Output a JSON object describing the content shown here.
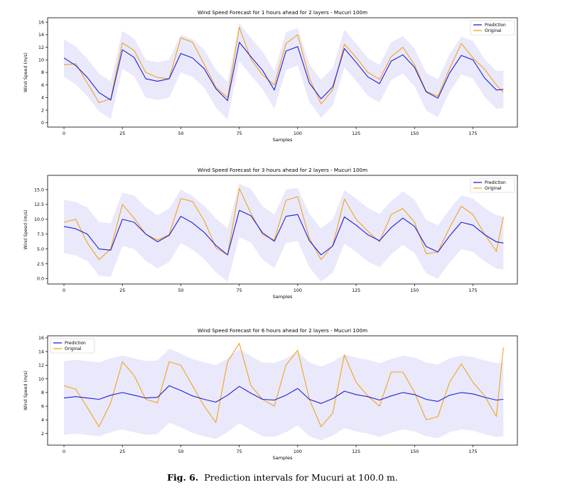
{
  "caption": {
    "label": "Fig. 6.",
    "text": "Prediction intervals for Mucuri at 100.0 m."
  },
  "colors": {
    "prediction": "#1f1fd6",
    "original": "#f5a21b",
    "band": "#e9e9fb",
    "axis": "#000000"
  },
  "chart_data": [
    {
      "type": "line",
      "title": "Wind Speed Forecast for 1 hours ahead for 2 layers - Mucuri 100m",
      "xlabel": "Samples",
      "ylabel": "Wind Speed (m/s)",
      "xlim": [
        -7,
        194
      ],
      "ylim": [
        -0.7,
        16.7
      ],
      "xticks": [
        0,
        25,
        50,
        75,
        100,
        125,
        150,
        175
      ],
      "xtick_labels": [
        "0",
        "25",
        "50",
        "75",
        "100",
        "125",
        "150",
        "175"
      ],
      "yticks": [
        0,
        2,
        4,
        6,
        8,
        10,
        12,
        14,
        16
      ],
      "ytick_labels": [
        "0",
        "2",
        "4",
        "6",
        "8",
        "10",
        "12",
        "14",
        "16"
      ],
      "legend": {
        "position": "top-right",
        "entries": [
          "Prediction",
          "Original"
        ]
      },
      "band_halfwidth": 3.0,
      "series": [
        {
          "name": "Prediction",
          "color": "#1f1fd6",
          "x": [
            0,
            5,
            10,
            15,
            20,
            25,
            30,
            35,
            40,
            45,
            50,
            55,
            60,
            65,
            70,
            75,
            80,
            85,
            90,
            95,
            100,
            105,
            110,
            115,
            120,
            125,
            130,
            135,
            140,
            145,
            150,
            155,
            160,
            165,
            170,
            175,
            180,
            185,
            188
          ],
          "values": [
            10.3,
            9.1,
            7.2,
            4.8,
            3.6,
            11.6,
            10.4,
            7.0,
            6.6,
            7.0,
            11.0,
            10.3,
            8.6,
            5.4,
            3.5,
            12.8,
            10.5,
            8.3,
            5.2,
            11.4,
            12.1,
            6.3,
            3.8,
            5.7,
            11.8,
            9.6,
            7.3,
            6.2,
            9.8,
            10.8,
            8.8,
            4.9,
            3.9,
            7.9,
            10.7,
            10.0,
            7.1,
            5.2,
            5.3
          ]
        },
        {
          "name": "Original",
          "color": "#f5a21b",
          "x": [
            0,
            5,
            10,
            15,
            20,
            25,
            30,
            35,
            40,
            45,
            50,
            55,
            60,
            65,
            70,
            75,
            80,
            85,
            90,
            95,
            100,
            105,
            110,
            115,
            120,
            125,
            130,
            135,
            140,
            145,
            150,
            155,
            160,
            165,
            170,
            175,
            180,
            185,
            188
          ],
          "values": [
            9.2,
            9.4,
            6.3,
            3.2,
            3.8,
            12.7,
            11.5,
            8.0,
            7.2,
            7.0,
            13.5,
            12.8,
            9.3,
            5.6,
            4.0,
            15.2,
            10.1,
            7.6,
            6.0,
            12.6,
            14.0,
            7.1,
            3.0,
            5.2,
            12.5,
            10.4,
            8.0,
            6.9,
            10.5,
            12.0,
            9.2,
            5.0,
            4.2,
            8.6,
            12.6,
            10.3,
            8.5,
            6.0,
            4.8
          ]
        }
      ]
    },
    {
      "type": "line",
      "title": "Wind Speed Forecast for 3 hours ahead for 2 layers - Mucuri 100m",
      "xlabel": "Samples",
      "ylabel": "Wind Speed (m/s)",
      "xlim": [
        -7,
        194
      ],
      "ylim": [
        -0.9,
        17.4
      ],
      "xticks": [
        0,
        25,
        50,
        75,
        100,
        125,
        150,
        175
      ],
      "xtick_labels": [
        "0",
        "25",
        "50",
        "75",
        "100",
        "125",
        "150",
        "175"
      ],
      "yticks": [
        0,
        2.5,
        5,
        7.5,
        10,
        12.5,
        15
      ],
      "ytick_labels": [
        "0.0",
        "2.5",
        "5.0",
        "7.5",
        "10.0",
        "12.5",
        "15.0"
      ],
      "legend": {
        "position": "top-right",
        "entries": [
          "Prediction",
          "Original"
        ]
      },
      "band_halfwidth": 4.5,
      "series": [
        {
          "name": "Prediction",
          "color": "#1f1fd6",
          "x": [
            0,
            5,
            10,
            15,
            20,
            25,
            30,
            35,
            40,
            45,
            50,
            55,
            60,
            65,
            70,
            75,
            80,
            85,
            90,
            95,
            100,
            105,
            110,
            115,
            120,
            125,
            130,
            135,
            140,
            145,
            150,
            155,
            160,
            165,
            170,
            175,
            180,
            185,
            188
          ],
          "values": [
            8.8,
            8.4,
            7.5,
            5.0,
            4.8,
            10.0,
            9.5,
            7.5,
            6.2,
            7.3,
            10.5,
            9.4,
            7.8,
            5.6,
            4.0,
            11.5,
            10.6,
            7.7,
            6.3,
            10.5,
            10.8,
            6.4,
            4.0,
            5.5,
            10.4,
            9.0,
            7.4,
            6.4,
            8.6,
            10.2,
            8.8,
            5.4,
            4.5,
            7.2,
            9.5,
            9.0,
            7.4,
            6.2,
            6.0
          ]
        },
        {
          "name": "Original",
          "color": "#f5a21b",
          "x": [
            0,
            5,
            10,
            15,
            20,
            25,
            30,
            35,
            40,
            45,
            50,
            55,
            60,
            65,
            70,
            75,
            80,
            85,
            90,
            95,
            100,
            105,
            110,
            115,
            120,
            125,
            130,
            135,
            140,
            145,
            150,
            155,
            160,
            165,
            170,
            175,
            180,
            185,
            188
          ],
          "values": [
            9.5,
            10.0,
            6.0,
            3.2,
            5.0,
            12.5,
            10.2,
            7.5,
            6.5,
            7.4,
            13.5,
            13.0,
            9.8,
            5.2,
            4.0,
            15.2,
            11.0,
            7.4,
            6.5,
            13.2,
            13.8,
            6.8,
            3.2,
            5.6,
            13.4,
            10.0,
            8.0,
            6.2,
            10.8,
            11.8,
            9.5,
            4.2,
            4.5,
            8.6,
            12.2,
            10.8,
            7.5,
            4.6,
            10.4
          ]
        }
      ]
    },
    {
      "type": "line",
      "title": "Wind Speed Forecast for 6 hours ahead for 2 layers - Mucuri 100m",
      "xlabel": "Samples",
      "ylabel": "Wind Speed (m/s)",
      "xlim": [
        -7,
        194
      ],
      "ylim": [
        0.3,
        16.3
      ],
      "xticks": [
        0,
        25,
        50,
        75,
        100,
        125,
        150,
        175
      ],
      "xtick_labels": [
        "0",
        "25",
        "50",
        "75",
        "100",
        "125",
        "150",
        "175"
      ],
      "yticks": [
        2,
        4,
        6,
        8,
        10,
        12,
        14,
        16
      ],
      "ytick_labels": [
        "2",
        "4",
        "6",
        "8",
        "10",
        "12",
        "14",
        "16"
      ],
      "legend": {
        "position": "top-left",
        "entries": [
          "Prediction",
          "Original"
        ]
      },
      "band_halfwidth": 5.4,
      "series": [
        {
          "name": "Prediction",
          "color": "#1f1fd6",
          "x": [
            0,
            5,
            10,
            15,
            20,
            25,
            30,
            35,
            40,
            45,
            50,
            55,
            60,
            65,
            70,
            75,
            80,
            85,
            90,
            95,
            100,
            105,
            110,
            115,
            120,
            125,
            130,
            135,
            140,
            145,
            150,
            155,
            160,
            165,
            170,
            175,
            180,
            185,
            188
          ],
          "values": [
            7.2,
            7.4,
            7.2,
            7.0,
            7.6,
            8.0,
            7.6,
            7.2,
            7.3,
            9.0,
            8.3,
            7.5,
            7.0,
            6.6,
            7.6,
            8.9,
            7.9,
            7.0,
            6.9,
            7.6,
            8.6,
            7.0,
            6.4,
            7.1,
            8.2,
            7.7,
            7.4,
            6.9,
            7.5,
            8.0,
            7.7,
            7.0,
            6.7,
            7.6,
            8.0,
            7.8,
            7.3,
            6.9,
            7.0
          ]
        },
        {
          "name": "Original",
          "color": "#f5a21b",
          "x": [
            0,
            5,
            10,
            15,
            20,
            25,
            30,
            35,
            40,
            45,
            50,
            55,
            60,
            65,
            70,
            75,
            80,
            85,
            90,
            95,
            100,
            105,
            110,
            115,
            120,
            125,
            130,
            135,
            140,
            145,
            150,
            155,
            160,
            165,
            170,
            175,
            180,
            185,
            188
          ],
          "values": [
            9.0,
            8.5,
            5.8,
            3.0,
            6.5,
            12.5,
            10.5,
            7.0,
            6.5,
            12.5,
            12.0,
            9.0,
            6.0,
            3.6,
            12.5,
            15.2,
            9.0,
            7.0,
            6.0,
            12.0,
            14.2,
            7.0,
            3.0,
            5.0,
            13.5,
            9.5,
            7.5,
            6.0,
            11.0,
            11.0,
            8.0,
            4.0,
            4.5,
            9.5,
            12.2,
            9.5,
            7.5,
            4.5,
            14.6
          ]
        }
      ]
    }
  ]
}
